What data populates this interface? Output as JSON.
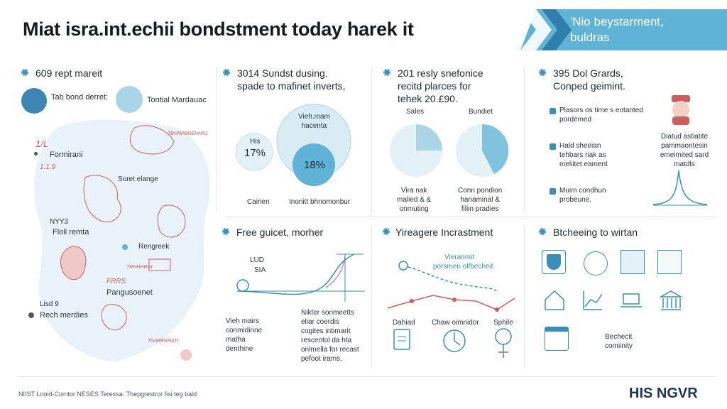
{
  "header": {
    "title": "Miat isra.int.echii bondstment today harek it",
    "banner_line1": "'Nio beystarment,",
    "banner_line2": "buldras"
  },
  "map_panel": {
    "heading": "609 rept mareit",
    "legend_dark": "Tab bond derret:",
    "legend_light": "Tontial Mardauac",
    "red_tag_1": "1/L",
    "red_tag_2": "1.1.9",
    "label_formiran": "Formirani",
    "label_secret": "Soret elange",
    "label_nin": "NYY3",
    "label_floli": "Floli remta",
    "label_rengrek": "Rengreek",
    "label_red_1": "TRHHHRUI",
    "label_pangu": "Pangusoenet",
    "label_lisd": "Lisd 9",
    "label_rech": "Rech merdies",
    "red_small_1": "TBHNPBNEHHN1",
    "red_small_2": "FRRS",
    "red_small_3": "TN0BRRHATI"
  },
  "venn_panel": {
    "heading_line1": "3014 Sundst dusing.",
    "heading_line2": "spade to mafinet inverts,",
    "big_circle_label_1": "Vieh.mam",
    "big_circle_label_2": "hacenta",
    "small_circle_label": "His",
    "small_circle_value": "17%",
    "inner_circle_value": "18%",
    "label_left": "Cairien",
    "label_right": "Inonitt bhnomonbur"
  },
  "pie_panel": {
    "heading_line1": "201 resly snefonice",
    "heading_line2": "recitd plarces for",
    "heading_line3": "tehek 20.£90.",
    "col_left": "Sales",
    "col_right": "Bundiet",
    "caption_left_1": "Vira  nak",
    "caption_left_2": "malied & &",
    "caption_left_3": "onmuting",
    "caption_right_1": "Conn pondion",
    "caption_right_2": "hanaminal &",
    "caption_right_3": "filiin pradies"
  },
  "grants_panel": {
    "heading_line1": "395 Dol Grards,",
    "heading_line2": "Conped geimint.",
    "item_1a": "Plasors os time s eotanted",
    "item_1b": "pordemed",
    "item_2a": "Hald sheeian",
    "item_2b": "tehbars riak as",
    "item_2c": "meliitet eament",
    "item_3a": "Muim condhun",
    "item_3b": "probeune.",
    "side_1": "Diatud astiatite",
    "side_2": "pammaontesin",
    "side_3": "emeimited sard",
    "side_4": "matdls"
  },
  "free_panel": {
    "heading": "Free guicet, morher",
    "chart_tag_1": "LUD",
    "chart_tag_2": "SIA",
    "caption_left_1": "Vieh mairs",
    "caption_left_2": "conmidinne",
    "caption_left_3": "matha",
    "caption_left_4": "denthine",
    "caption_right_1": "Nikter sonmeetts",
    "caption_right_2": "eliar coerdis",
    "caption_right_3": "cogites intimarit",
    "caption_right_4": "rescentol da hta",
    "caption_right_5": "onlmella for recast",
    "caption_right_6": "pefoot irams."
  },
  "invest_panel": {
    "heading": "Yireagere Incrastment",
    "chart_label_1": "Vieranmit",
    "chart_label_2": "porsmen olfbecheit",
    "icon_1": "Dahiad",
    "icon_2": "Chaw oimnidor",
    "icon_3": "Sphile"
  },
  "tools_panel": {
    "heading": "Btcheeing to wirtan",
    "caption_1": "Bechecit",
    "caption_2": "comiinity"
  },
  "footer": {
    "text": "NIIST Lnoid-Comtor NESES Teressa: Thepgrestror fisi teg bald",
    "brand": "HIS NGVR"
  },
  "colors": {
    "accent": "#3a8fb9",
    "light_blue": "#a9d5e6",
    "dark_blue": "#3d86b3",
    "map_red": "#c9605f",
    "map_fill": "#e8f2f8"
  }
}
